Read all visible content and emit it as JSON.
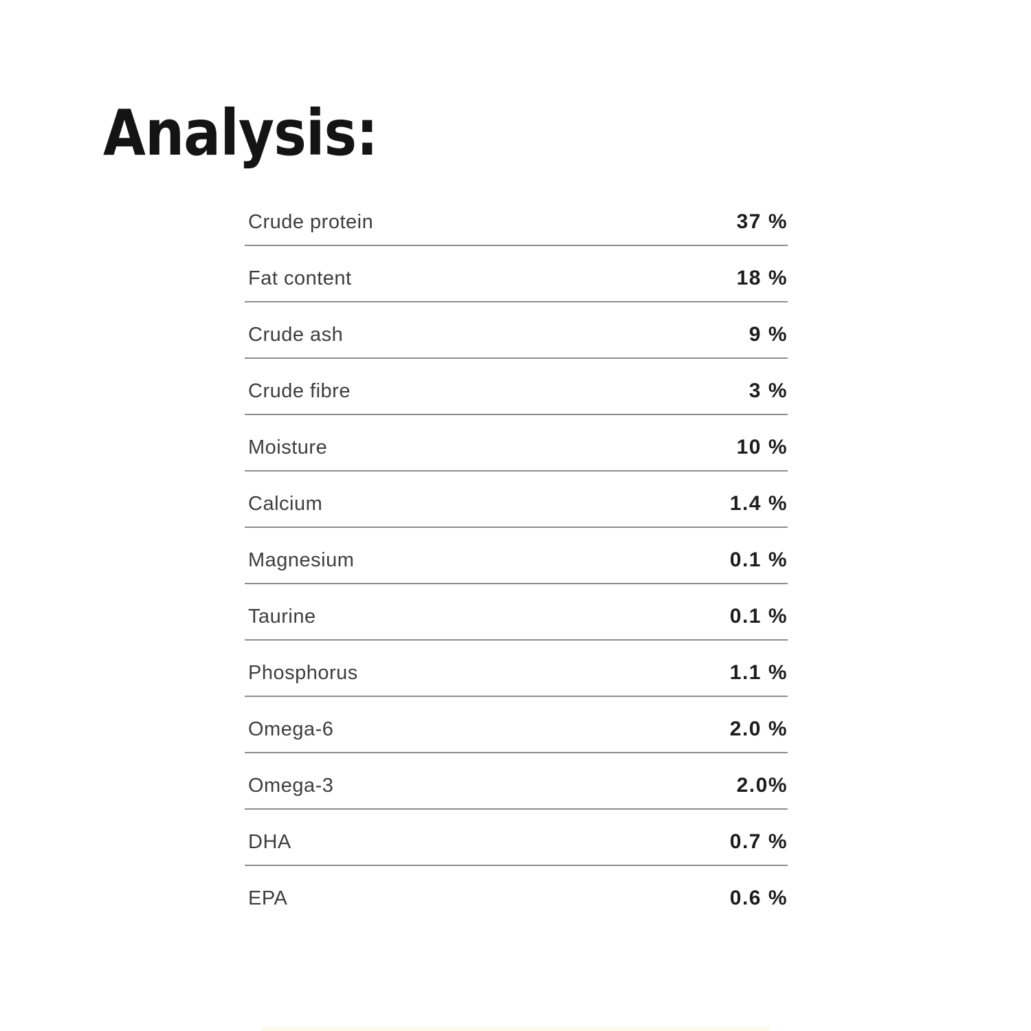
{
  "page": {
    "heading": "Analysis:",
    "background_color": "#ffffff"
  },
  "colors": {
    "heading_text": "#141414",
    "label_text": "#3d3d3d",
    "value_text": "#1c1c1c",
    "divider": "#8c8c8c",
    "bottom_strip": "#fbf5d8"
  },
  "analysis_table": {
    "rows": [
      {
        "label": "Crude protein",
        "value": "37 %"
      },
      {
        "label": "Fat content",
        "value": "18 %"
      },
      {
        "label": "Crude ash",
        "value": "9 %"
      },
      {
        "label": "Crude fibre",
        "value": "3 %"
      },
      {
        "label": "Moisture",
        "value": "10 %"
      },
      {
        "label": "Calcium",
        "value": "1.4 %"
      },
      {
        "label": "Magnesium",
        "value": "0.1 %"
      },
      {
        "label": "Taurine",
        "value": "0.1 %"
      },
      {
        "label": "Phosphorus",
        "value": "1.1 %"
      },
      {
        "label": "Omega-6",
        "value": "2.0 %"
      },
      {
        "label": "Omega-3",
        "value": "2.0%"
      },
      {
        "label": "DHA",
        "value": "0.7 %"
      },
      {
        "label": "EPA",
        "value": "0.6 %"
      }
    ]
  }
}
